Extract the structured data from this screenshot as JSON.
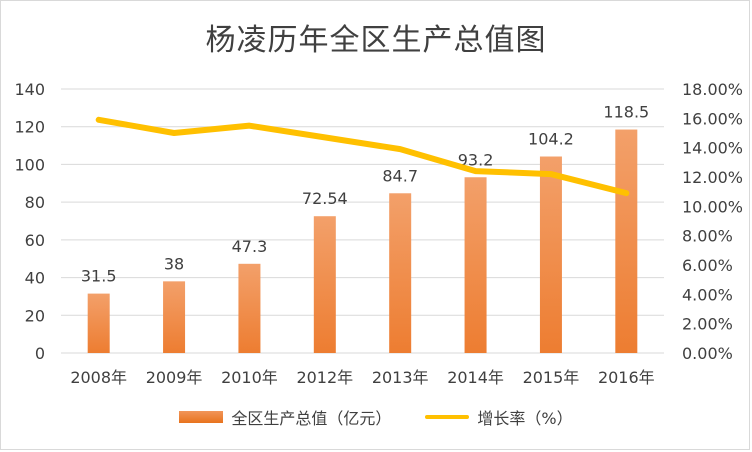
{
  "chart_data": {
    "type": "bar",
    "title": "杨凌历年全区生产总值图",
    "categories": [
      "2008年",
      "2009年",
      "2010年",
      "2012年",
      "2013年",
      "2014年",
      "2015年",
      "2016年"
    ],
    "series": [
      {
        "name": "全区生产总值（亿元）",
        "type": "bar",
        "axis": "left",
        "values": [
          31.5,
          38,
          47.3,
          72.54,
          84.7,
          93.2,
          104.2,
          118.5
        ],
        "labels": [
          "31.5",
          "38",
          "47.3",
          "72.54",
          "84.7",
          "93.2",
          "104.2",
          "118.5"
        ],
        "color": "#ed7d31"
      },
      {
        "name": "增长率（%）",
        "type": "line",
        "axis": "right",
        "values": [
          15.9,
          15.0,
          15.5,
          14.7,
          13.9,
          12.4,
          12.2,
          10.9
        ],
        "color": "#ffc000"
      }
    ],
    "left_axis": {
      "min": 0,
      "max": 140,
      "step": 20,
      "ticks": [
        "0",
        "20",
        "40",
        "60",
        "80",
        "100",
        "120",
        "140"
      ]
    },
    "right_axis": {
      "min": 0,
      "max": 18,
      "step": 2,
      "ticks": [
        "0.00%",
        "2.00%",
        "4.00%",
        "6.00%",
        "8.00%",
        "10.00%",
        "12.00%",
        "14.00%",
        "16.00%",
        "18.00%"
      ]
    },
    "grid": true,
    "legend_position": "bottom"
  },
  "colors": {
    "bar": "#ed7d31",
    "line": "#ffc000",
    "grid": "#d9d9d9",
    "text": "#404040"
  }
}
